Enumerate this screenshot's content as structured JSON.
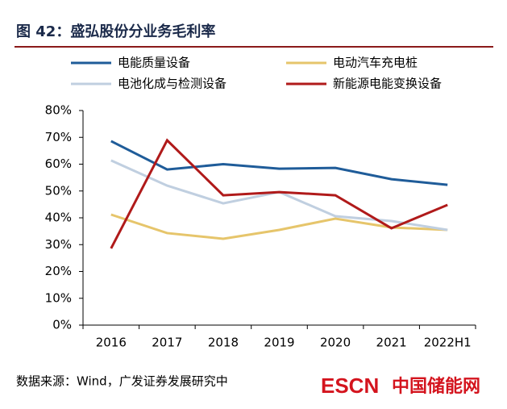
{
  "chart_data": {
    "type": "line",
    "title": "图 42：盛弘股份分业务毛利率",
    "categories": [
      "2016",
      "2017",
      "2018",
      "2019",
      "2020",
      "2021",
      "2022H1"
    ],
    "series": [
      {
        "name": "电能质量设备",
        "color": "#1f5c99",
        "values": [
          68.6,
          58,
          60,
          58.3,
          58.6,
          54.4,
          52.3
        ]
      },
      {
        "name": "电动汽车充电桩",
        "color": "#e6c56b",
        "values": [
          41.2,
          34.3,
          32.2,
          35.5,
          39.7,
          36.4,
          35.5
        ]
      },
      {
        "name": "电池化成与检测设备",
        "color": "#c0cfe0",
        "values": [
          61.4,
          52,
          45.4,
          49.6,
          40.6,
          38.8,
          35.5
        ]
      },
      {
        "name": "新能源电能变换设备",
        "color": "#b01a1a",
        "values": [
          28.6,
          68.9,
          48.4,
          49.6,
          48.4,
          36.1,
          44.8
        ]
      }
    ],
    "ylim": [
      0,
      80
    ],
    "yticks": [
      {
        "value": 0,
        "label": "0%"
      },
      {
        "value": 10,
        "label": "10%"
      },
      {
        "value": 20,
        "label": "20%"
      },
      {
        "value": 30,
        "label": "30%"
      },
      {
        "value": 40,
        "label": "40%"
      },
      {
        "value": 50,
        "label": "50%"
      },
      {
        "value": 60,
        "label": "60%"
      },
      {
        "value": 70,
        "label": "70%"
      },
      {
        "value": 80,
        "label": "80%"
      }
    ],
    "grid": false,
    "source": "数据来源：Wind，广发证券发展研究中",
    "watermark": {
      "brand": "ESCN",
      "site": "中国储能网"
    }
  }
}
